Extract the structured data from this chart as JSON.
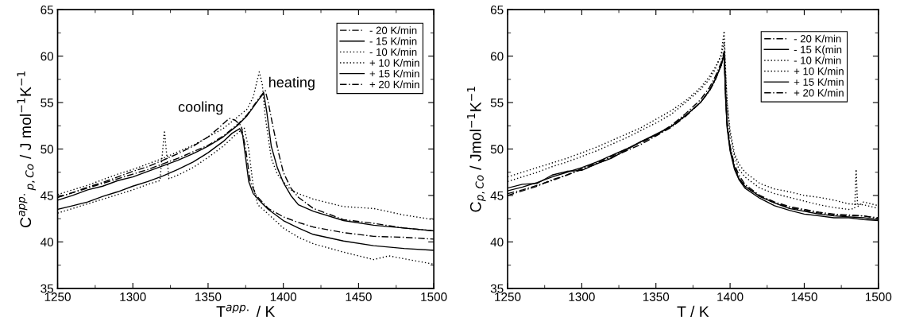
{
  "chart_data": [
    {
      "type": "line",
      "xlabel": "T$^{app.}$ / K",
      "ylabel": "C$^{app.}$$_{p,Co}$ / J mol$^{−1}$K$^{−1}$",
      "xlim": [
        1250,
        1500
      ],
      "xticks": [
        1250,
        1300,
        1350,
        1400,
        1450,
        1500
      ],
      "ylim": [
        35,
        65
      ],
      "yticks": [
        35,
        40,
        45,
        50,
        55,
        60,
        65
      ],
      "grid": false,
      "legend": "top right",
      "marker": "none",
      "annotations": [
        "cooling",
        "heating"
      ],
      "series": [
        {
          "name": "- 20 K/min",
          "color": "#000000",
          "line_style": "dashdot",
          "x": [
            1250,
            1260,
            1270,
            1280,
            1290,
            1300,
            1310,
            1320,
            1330,
            1340,
            1350,
            1358,
            1364,
            1368,
            1372,
            1375,
            1378,
            1382,
            1390,
            1400,
            1410,
            1420,
            1440,
            1460,
            1480,
            1500
          ],
          "values": [
            44.8,
            45.3,
            45.9,
            46.4,
            47,
            47.6,
            48.1,
            48.8,
            49.5,
            50.3,
            51.3,
            52.4,
            53.3,
            53.1,
            52.5,
            50,
            46.5,
            45,
            43.6,
            42.7,
            42.1,
            41.6,
            41,
            40.6,
            40.5,
            40.3
          ]
        },
        {
          "name": "- 15 K/min",
          "color": "#000000",
          "line_style": "solid",
          "x": [
            1250,
            1260,
            1270,
            1280,
            1290,
            1300,
            1310,
            1320,
            1330,
            1340,
            1350,
            1360,
            1366,
            1371,
            1373,
            1375,
            1377,
            1380,
            1385,
            1390,
            1400,
            1410,
            1420,
            1440,
            1460,
            1480,
            1500
          ],
          "values": [
            43.5,
            43.9,
            44.3,
            44.9,
            45.4,
            46,
            46.5,
            47.1,
            47.8,
            48.6,
            49.6,
            50.8,
            51.7,
            52.2,
            51.5,
            49,
            46.5,
            45.2,
            44.3,
            43.5,
            42.3,
            41.5,
            40.8,
            40.1,
            39.6,
            39.3,
            39.1
          ]
        },
        {
          "name": "- 10 K/min",
          "color": "#000000",
          "line_style": "dotted",
          "x": [
            1250,
            1260,
            1270,
            1280,
            1290,
            1300,
            1310,
            1318,
            1321,
            1324,
            1330,
            1340,
            1350,
            1360,
            1368,
            1374,
            1377,
            1380,
            1383,
            1390,
            1400,
            1410,
            1420,
            1440,
            1460,
            1470,
            1480,
            1500
          ],
          "values": [
            43.1,
            43.6,
            44.1,
            44.6,
            45.1,
            45.6,
            46.2,
            46.6,
            52,
            46.8,
            47.2,
            48,
            49.1,
            50.3,
            51.5,
            52.3,
            50,
            46,
            44,
            43,
            41.5,
            40.5,
            39.8,
            38.9,
            38.1,
            38.5,
            38.2,
            37.6
          ]
        },
        {
          "name": "+ 10 K/min",
          "color": "#000000",
          "line_style": "dotted",
          "x": [
            1250,
            1260,
            1270,
            1280,
            1290,
            1300,
            1310,
            1320,
            1330,
            1340,
            1350,
            1360,
            1370,
            1376,
            1380,
            1384,
            1386,
            1388,
            1392,
            1396,
            1400,
            1405,
            1410,
            1420,
            1440,
            1460,
            1480,
            1500
          ],
          "values": [
            45.1,
            45.6,
            46.1,
            46.7,
            47.3,
            47.8,
            48.4,
            49,
            49.7,
            50.4,
            51.3,
            52.2,
            53.5,
            54.3,
            55.6,
            58.3,
            57,
            53.5,
            49,
            47.3,
            46.5,
            45.6,
            45.2,
            44.6,
            43.8,
            43.6,
            42.9,
            42.4
          ]
        },
        {
          "name": "+ 15 K/min",
          "color": "#000000",
          "line_style": "solid",
          "x": [
            1250,
            1260,
            1270,
            1280,
            1290,
            1300,
            1310,
            1320,
            1330,
            1340,
            1350,
            1360,
            1370,
            1376,
            1380,
            1384,
            1387,
            1389,
            1392,
            1396,
            1400,
            1405,
            1410,
            1420,
            1440,
            1460,
            1480,
            1500
          ],
          "values": [
            44.5,
            45,
            45.6,
            46,
            46.6,
            47,
            47.6,
            48.2,
            48.8,
            49.5,
            50.3,
            51.3,
            52.6,
            53.6,
            54.5,
            55.4,
            56,
            54,
            50.3,
            48,
            46.4,
            45,
            44,
            43.3,
            42.3,
            41.8,
            41.5,
            41.2
          ]
        },
        {
          "name": "+ 20 K/min",
          "color": "#000000",
          "line_style": "dashdot",
          "x": [
            1250,
            1260,
            1270,
            1280,
            1290,
            1300,
            1310,
            1320,
            1330,
            1340,
            1350,
            1360,
            1370,
            1376,
            1380,
            1384,
            1388,
            1390,
            1393,
            1397,
            1400,
            1405,
            1410,
            1420,
            1440,
            1460,
            1480,
            1500
          ],
          "values": [
            44.8,
            45.3,
            45.8,
            46.3,
            46.8,
            47.3,
            47.8,
            48.4,
            49,
            49.7,
            50.4,
            51.4,
            52.7,
            53.7,
            54.6,
            55.5,
            56.3,
            55,
            52.5,
            49.5,
            47.5,
            45.8,
            44.8,
            43.6,
            42.4,
            42,
            41.5,
            41.2
          ]
        }
      ]
    },
    {
      "type": "line",
      "xlabel": "T / K",
      "ylabel": "C$_{p,Co}$ / Jmol$^{−1}$K$^{−1}$",
      "xlim": [
        1250,
        1500
      ],
      "xticks": [
        1250,
        1300,
        1350,
        1400,
        1450,
        1500
      ],
      "ylim": [
        35,
        65
      ],
      "yticks": [
        35,
        40,
        45,
        50,
        55,
        60,
        65
      ],
      "grid": false,
      "legend": "top right",
      "marker": "none",
      "series": [
        {
          "name": "- 20 K/min",
          "color": "#000000",
          "line_style": "dashdot",
          "x": [
            1250,
            1260,
            1270,
            1280,
            1290,
            1300,
            1310,
            1320,
            1330,
            1340,
            1350,
            1360,
            1370,
            1380,
            1386,
            1390,
            1394,
            1396,
            1397,
            1398,
            1400,
            1403,
            1406,
            1410,
            1420,
            1430,
            1440,
            1450,
            1460,
            1470,
            1480,
            1490,
            1500
          ],
          "values": [
            45,
            45.5,
            46,
            46.7,
            47.2,
            47.9,
            48.5,
            49.2,
            50,
            50.7,
            51.5,
            52.5,
            53.8,
            55.3,
            56.6,
            57.8,
            59.3,
            60.5,
            56,
            53,
            50.3,
            48.3,
            47.2,
            46.2,
            45,
            44.3,
            43.8,
            43.5,
            43.2,
            43,
            42.9,
            42.8,
            42.6
          ]
        },
        {
          "name": "- 15 K(min",
          "color": "#000000",
          "line_style": "solid",
          "x": [
            1250,
            1260,
            1270,
            1280,
            1290,
            1300,
            1310,
            1320,
            1330,
            1340,
            1350,
            1360,
            1370,
            1380,
            1386,
            1390,
            1394,
            1396,
            1397,
            1398,
            1400,
            1403,
            1406,
            1410,
            1420,
            1430,
            1440,
            1450,
            1460,
            1470,
            1480,
            1490,
            1500
          ],
          "values": [
            45.8,
            46.2,
            46.3,
            47.2,
            47.6,
            47.7,
            48.4,
            49,
            49.9,
            50.8,
            51.6,
            52.4,
            53.6,
            55,
            56.3,
            57.5,
            59,
            60.3,
            55.5,
            52.5,
            50,
            48,
            46.8,
            46,
            44.9,
            44.2,
            43.6,
            43.3,
            43,
            42.8,
            42.7,
            42.6,
            42.4
          ]
        },
        {
          "name": "- 10 K/min",
          "color": "#000000",
          "line_style": "dotted",
          "x": [
            1250,
            1260,
            1270,
            1280,
            1290,
            1300,
            1310,
            1320,
            1330,
            1340,
            1350,
            1360,
            1370,
            1380,
            1386,
            1390,
            1394,
            1396,
            1397,
            1398,
            1400,
            1403,
            1406,
            1410,
            1420,
            1430,
            1440,
            1450,
            1460,
            1470,
            1480,
            1490,
            1500
          ],
          "values": [
            47,
            47.5,
            48,
            48.5,
            49,
            49.6,
            50.2,
            50.9,
            51.6,
            52.3,
            53.2,
            54.1,
            55.2,
            56.6,
            57.8,
            58.8,
            60,
            61.5,
            58,
            55,
            52,
            49.5,
            48.4,
            47.5,
            46.3,
            45.7,
            45.4,
            45,
            44.8,
            44.5,
            44.1,
            44,
            43.6
          ]
        },
        {
          "name": "+ 10 K/min",
          "color": "#000000",
          "line_style": "dotted",
          "x": [
            1250,
            1260,
            1270,
            1280,
            1290,
            1300,
            1310,
            1320,
            1330,
            1340,
            1350,
            1360,
            1370,
            1380,
            1386,
            1390,
            1394,
            1396,
            1397,
            1398,
            1400,
            1403,
            1406,
            1410,
            1420,
            1430,
            1440,
            1450,
            1460,
            1470,
            1480,
            1484,
            1485,
            1486,
            1490,
            1500
          ],
          "values": [
            46.5,
            47,
            47.5,
            48.1,
            48.6,
            49.2,
            49.8,
            50.5,
            51.2,
            52,
            52.8,
            53.7,
            55,
            56.4,
            57.5,
            58.6,
            60.2,
            62.7,
            58.5,
            55,
            51.5,
            49.2,
            47.8,
            47,
            45.8,
            45.2,
            44.8,
            44.4,
            44,
            43.7,
            43.5,
            43.6,
            47.8,
            43.8,
            44.3,
            43.9
          ]
        },
        {
          "name": "+ 15 K/min",
          "color": "#000000",
          "line_style": "solid",
          "x": [
            1250,
            1260,
            1270,
            1280,
            1290,
            1300,
            1310,
            1320,
            1330,
            1340,
            1350,
            1360,
            1370,
            1380,
            1386,
            1390,
            1394,
            1396,
            1397,
            1398,
            1400,
            1403,
            1406,
            1410,
            1420,
            1430,
            1440,
            1450,
            1460,
            1470,
            1480,
            1490,
            1500
          ],
          "values": [
            45.5,
            45.9,
            46.4,
            47,
            47.5,
            48,
            48.6,
            49.3,
            50,
            50.8,
            51.5,
            52.4,
            53.6,
            55,
            56.3,
            57.5,
            59,
            60.2,
            55.5,
            52.3,
            49.8,
            47.8,
            46.7,
            45.8,
            44.7,
            43.9,
            43.4,
            43,
            42.8,
            42.6,
            42.6,
            42.4,
            42.3
          ]
        },
        {
          "name": "+ 20 K/min",
          "color": "#000000",
          "line_style": "dashdot",
          "x": [
            1250,
            1260,
            1270,
            1280,
            1290,
            1300,
            1310,
            1320,
            1330,
            1340,
            1350,
            1360,
            1370,
            1380,
            1386,
            1390,
            1394,
            1396,
            1397,
            1398,
            1400,
            1403,
            1406,
            1410,
            1420,
            1430,
            1440,
            1450,
            1460,
            1470,
            1480,
            1490,
            1500
          ],
          "values": [
            45.2,
            45.6,
            46.1,
            46.6,
            47.2,
            47.8,
            48.4,
            49.1,
            49.8,
            50.5,
            51.4,
            52.3,
            53.5,
            55,
            56.2,
            57.4,
            59,
            60.4,
            55.8,
            52.7,
            50.1,
            48,
            46.9,
            46,
            44.9,
            44.2,
            43.7,
            43.4,
            43.1,
            42.9,
            42.8,
            42.8,
            42.5
          ]
        }
      ]
    }
  ]
}
